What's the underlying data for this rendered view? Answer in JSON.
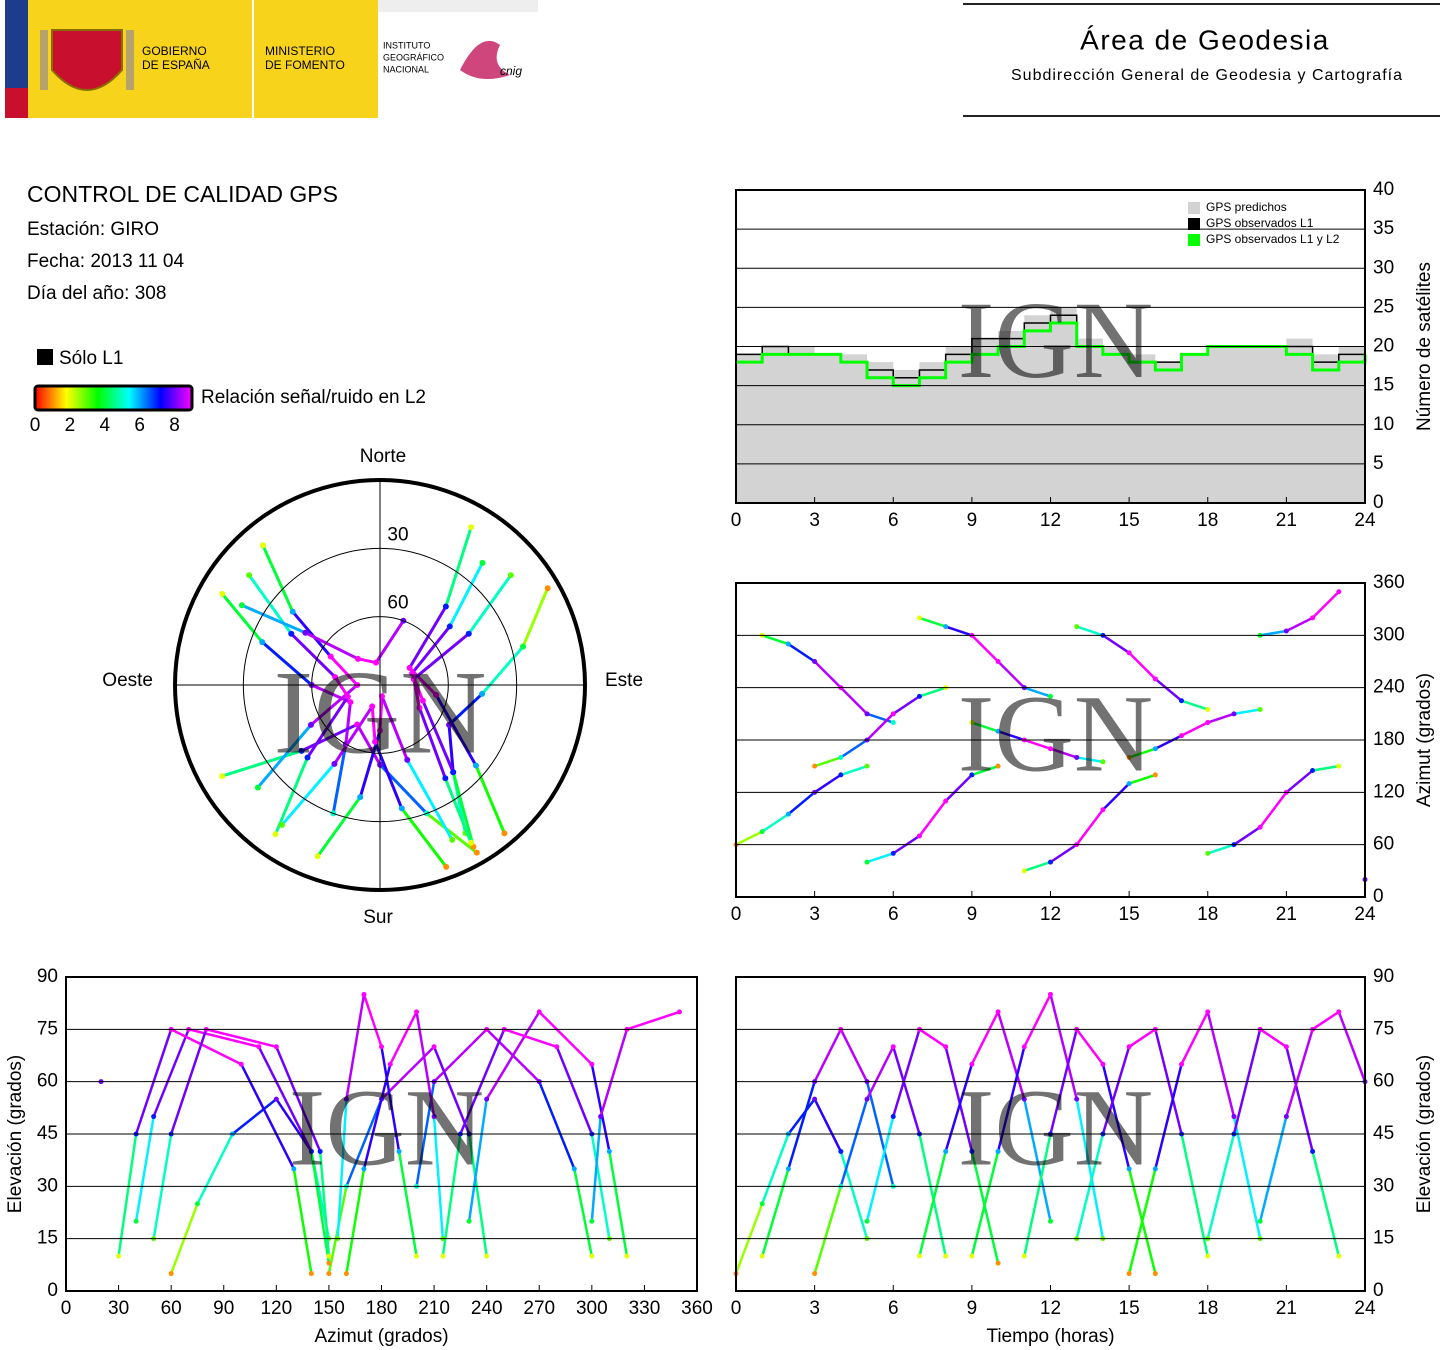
{
  "header": {
    "logo_lines": [
      [
        "GOBIERNO",
        "DE ESPAÑA"
      ],
      [
        "MINISTERIO",
        "DE FOMENTO"
      ],
      [
        "INSTITUTO",
        "GEOGRÁFICO",
        "NACIONAL"
      ]
    ],
    "cnig": "cnig",
    "title": "Área de Geodesia",
    "subtitle": "Subdirección General de Geodesia y Cartografía"
  },
  "report": {
    "title": "CONTROL DE CALIDAD GPS",
    "lines": [
      "Estación: GIRO",
      "Fecha: 2013 11 04",
      "Día del año: 308"
    ]
  },
  "watermark": "IGN",
  "chart_data": [
    {
      "type": "step",
      "ylabel": "Número de satélites",
      "yaxis_side": "right",
      "x": [
        0,
        1,
        2,
        3,
        4,
        5,
        6,
        7,
        8,
        9,
        10,
        11,
        12,
        13,
        14,
        15,
        16,
        17,
        18,
        19,
        20,
        21,
        22,
        23,
        24
      ],
      "series": [
        {
          "name": "GPS predichos",
          "color": "#d3d3d3",
          "fill": true,
          "values": [
            19,
            20,
            20,
            19,
            19,
            18,
            17,
            18,
            20,
            21,
            22,
            24,
            25,
            21,
            20,
            19,
            18,
            19,
            20,
            20,
            20,
            21,
            19,
            20,
            20
          ]
        },
        {
          "name": "GPS observados L1",
          "color": "#000000",
          "values": [
            19,
            20,
            19,
            19,
            18,
            17,
            16,
            17,
            19,
            21,
            21,
            23,
            24,
            20,
            19,
            18,
            18,
            19,
            20,
            20,
            20,
            20,
            18,
            19,
            20
          ]
        },
        {
          "name": "GPS observados L1 y L2",
          "color": "#00ff00",
          "values": [
            18,
            19,
            19,
            19,
            18,
            16,
            15,
            16,
            18,
            19,
            20,
            22,
            23,
            20,
            19,
            18,
            17,
            19,
            20,
            20,
            20,
            19,
            17,
            18,
            19
          ]
        }
      ],
      "xlim": [
        0,
        24
      ],
      "xticks": [
        0,
        3,
        6,
        9,
        12,
        15,
        18,
        21,
        24
      ],
      "ylim": [
        0,
        40
      ],
      "yticks": [
        0,
        5,
        10,
        15,
        20,
        25,
        30,
        35,
        40
      ],
      "grid": true
    },
    {
      "type": "skyplot",
      "directions": {
        "north": "Norte",
        "south": "Sur",
        "east": "Este",
        "west": "Oeste"
      },
      "rticks": [
        30,
        60
      ],
      "l1_only": {
        "label": "Sólo L1",
        "color": "#000000"
      },
      "colorbar": {
        "label": "Relación señal/ruido en L2",
        "clim": [
          0,
          9
        ],
        "ticks": [
          0,
          2,
          4,
          6,
          8
        ],
        "colors": [
          "#ff0000",
          "#ffff00",
          "#00ff00",
          "#00ffff",
          "#0000ff",
          "#ff00ff"
        ]
      },
      "series": [
        {
          "time": [
            0,
            1,
            2,
            3,
            4,
            5
          ],
          "azimuth": [
            60,
            75,
            95,
            120,
            140,
            150
          ],
          "elevation": [
            5,
            25,
            45,
            55,
            40,
            15
          ],
          "snr": [
            1,
            4,
            6,
            8,
            7,
            3
          ]
        },
        {
          "time": [
            1,
            2,
            3,
            4,
            5,
            6
          ],
          "azimuth": [
            300,
            290,
            270,
            240,
            210,
            200
          ],
          "elevation": [
            10,
            35,
            60,
            75,
            60,
            30
          ],
          "snr": [
            2,
            6,
            8,
            9,
            8,
            5
          ]
        },
        {
          "time": [
            3,
            4,
            5,
            6,
            7,
            8
          ],
          "azimuth": [
            150,
            160,
            180,
            210,
            230,
            240
          ],
          "elevation": [
            5,
            30,
            55,
            70,
            45,
            10
          ],
          "snr": [
            1,
            5,
            8,
            9,
            7,
            2
          ]
        },
        {
          "time": [
            5,
            6,
            7,
            8,
            9,
            10
          ],
          "azimuth": [
            40,
            50,
            70,
            110,
            140,
            150
          ],
          "elevation": [
            20,
            50,
            75,
            70,
            40,
            8
          ],
          "snr": [
            4,
            7,
            9,
            9,
            7,
            1
          ]
        },
        {
          "time": [
            7,
            8,
            9,
            10,
            11,
            12
          ],
          "azimuth": [
            320,
            310,
            300,
            270,
            240,
            230
          ],
          "elevation": [
            10,
            40,
            65,
            80,
            55,
            20
          ],
          "snr": [
            2,
            6,
            9,
            9,
            8,
            4
          ]
        },
        {
          "time": [
            9,
            10,
            11,
            12,
            13,
            14
          ],
          "azimuth": [
            200,
            190,
            180,
            170,
            160,
            155
          ],
          "elevation": [
            10,
            40,
            70,
            85,
            55,
            15
          ],
          "snr": [
            2,
            6,
            9,
            9,
            8,
            3
          ]
        },
        {
          "time": [
            11,
            12,
            13,
            14,
            15,
            16
          ],
          "azimuth": [
            30,
            40,
            60,
            100,
            130,
            140
          ],
          "elevation": [
            10,
            45,
            75,
            65,
            35,
            5
          ],
          "snr": [
            2,
            7,
            9,
            9,
            6,
            1
          ]
        },
        {
          "time": [
            13,
            14,
            15,
            16,
            17,
            18
          ],
          "azimuth": [
            310,
            300,
            280,
            250,
            225,
            215
          ],
          "elevation": [
            15,
            45,
            70,
            75,
            45,
            10
          ],
          "snr": [
            3,
            7,
            9,
            9,
            7,
            2
          ]
        },
        {
          "time": [
            15,
            16,
            17,
            18,
            19,
            20
          ],
          "azimuth": [
            160,
            170,
            185,
            200,
            210,
            215
          ],
          "elevation": [
            5,
            35,
            65,
            80,
            50,
            15
          ],
          "snr": [
            1,
            6,
            9,
            9,
            8,
            3
          ]
        },
        {
          "time": [
            18,
            19,
            20,
            21,
            22,
            23
          ],
          "azimuth": [
            50,
            60,
            80,
            120,
            145,
            150
          ],
          "elevation": [
            15,
            45,
            75,
            70,
            40,
            10
          ],
          "snr": [
            3,
            7,
            9,
            9,
            7,
            2
          ]
        },
        {
          "time": [
            20,
            21,
            22,
            23,
            24
          ],
          "azimuth": [
            300,
            305,
            320,
            350,
            20
          ],
          "elevation": [
            20,
            50,
            75,
            80,
            60
          ],
          "snr": [
            4,
            8,
            9,
            9,
            8
          ]
        }
      ]
    },
    {
      "type": "tracks",
      "x_field": "time",
      "y_field": "azimuth",
      "ylabel": "Azimut (grados)",
      "yaxis_side": "right",
      "xlim": [
        0,
        24
      ],
      "xticks": [
        0,
        3,
        6,
        9,
        12,
        15,
        18,
        21,
        24
      ],
      "ylim": [
        0,
        360
      ],
      "yticks": [
        0,
        60,
        120,
        180,
        240,
        300,
        360
      ],
      "grid": true
    },
    {
      "type": "tracks",
      "x_field": "azimuth",
      "y_field": "elevation",
      "xlabel": "Azimut (grados)",
      "ylabel": "Elevación (grados)",
      "yaxis_side": "left",
      "xlim": [
        0,
        360
      ],
      "xticks": [
        0,
        30,
        60,
        90,
        120,
        150,
        180,
        210,
        240,
        270,
        300,
        330,
        360
      ],
      "ylim": [
        0,
        90
      ],
      "yticks": [
        0,
        15,
        30,
        45,
        60,
        75,
        90
      ],
      "grid": true
    },
    {
      "type": "tracks",
      "x_field": "time",
      "y_field": "elevation",
      "xlabel": "Tiempo (horas)",
      "ylabel": "Elevación (grados)",
      "yaxis_side": "right",
      "xlim": [
        0,
        24
      ],
      "xticks": [
        0,
        3,
        6,
        9,
        12,
        15,
        18,
        21,
        24
      ],
      "ylim": [
        0,
        90
      ],
      "yticks": [
        0,
        15,
        30,
        45,
        60,
        75,
        90
      ],
      "grid": true
    }
  ]
}
